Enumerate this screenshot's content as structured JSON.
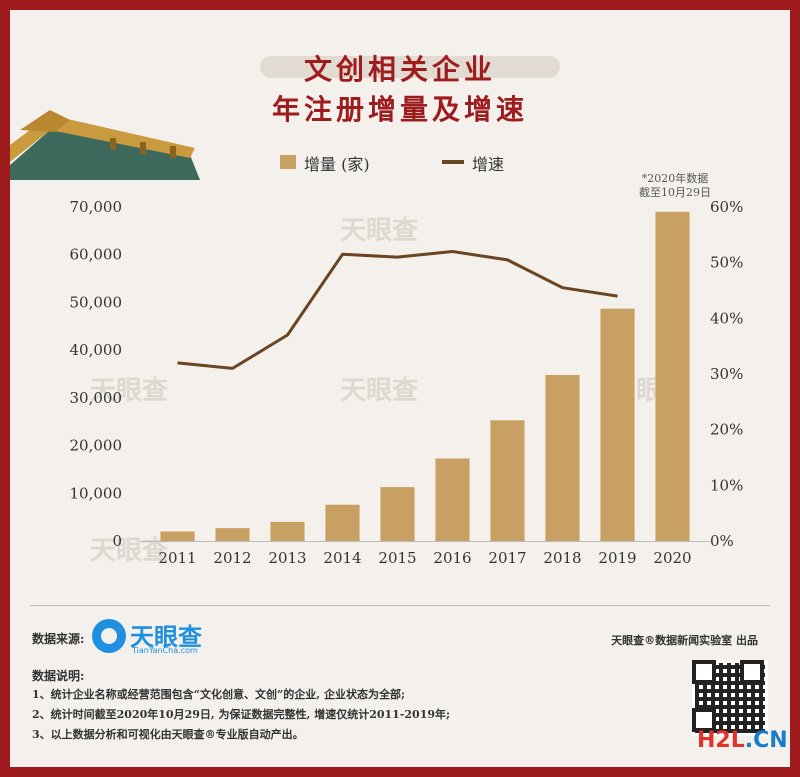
{
  "title": {
    "line1": "文创相关企业",
    "line2": "年注册增量及增速"
  },
  "legend": {
    "bar_label": "增量 (家)",
    "line_label": "增速"
  },
  "note": {
    "line1": "*2020年数据",
    "line2": "截至10月29日"
  },
  "watermark": "天眼查",
  "colors": {
    "frame": "#9e1b1e",
    "bar": "#c9a063",
    "line": "#6b4422",
    "title": "#9e1b1e",
    "brand": "#1f8fe0"
  },
  "chart_data": {
    "type": "bar",
    "categories": [
      "2011",
      "2012",
      "2013",
      "2014",
      "2015",
      "2016",
      "2017",
      "2018",
      "2019",
      "2020"
    ],
    "series": [
      {
        "name": "增量 (家)",
        "type": "bar",
        "axis": "left",
        "values": [
          2000,
          2700,
          4000,
          7600,
          11300,
          17300,
          25300,
          34800,
          48700,
          69000
        ]
      },
      {
        "name": "增速",
        "type": "line",
        "axis": "right",
        "values": [
          32,
          31,
          37,
          51.5,
          51,
          52,
          50.5,
          45.5,
          44,
          null
        ]
      }
    ],
    "ylim_left": [
      0,
      70000
    ],
    "yticks_left": [
      "0",
      "10,000",
      "20,000",
      "30,000",
      "40,000",
      "50,000",
      "60,000",
      "70,000"
    ],
    "ylim_right": [
      0,
      60
    ],
    "yticks_right": [
      "0%",
      "10%",
      "20%",
      "30%",
      "40%",
      "50%",
      "60%"
    ],
    "grid": false,
    "legend_position": "top"
  },
  "footer": {
    "source_label": "数据来源:",
    "logo_text": "天眼查",
    "logo_sub": "TianYanCha.com",
    "producer": "天眼查®数据新闻实验室 出品",
    "desc_title": "数据说明:",
    "desc_lines": [
      "1、统计企业名称或经营范围包含“文化创意、文创”的企业, 企业状态为全部;",
      "2、统计时间截至2020年10月29日, 为保证数据完整性, 增速仅统计2011-2019年;",
      "3、以上数据分析和可视化由天眼查®专业版自动产出。"
    ],
    "site_a": "H2L",
    "site_b": ".CN"
  }
}
